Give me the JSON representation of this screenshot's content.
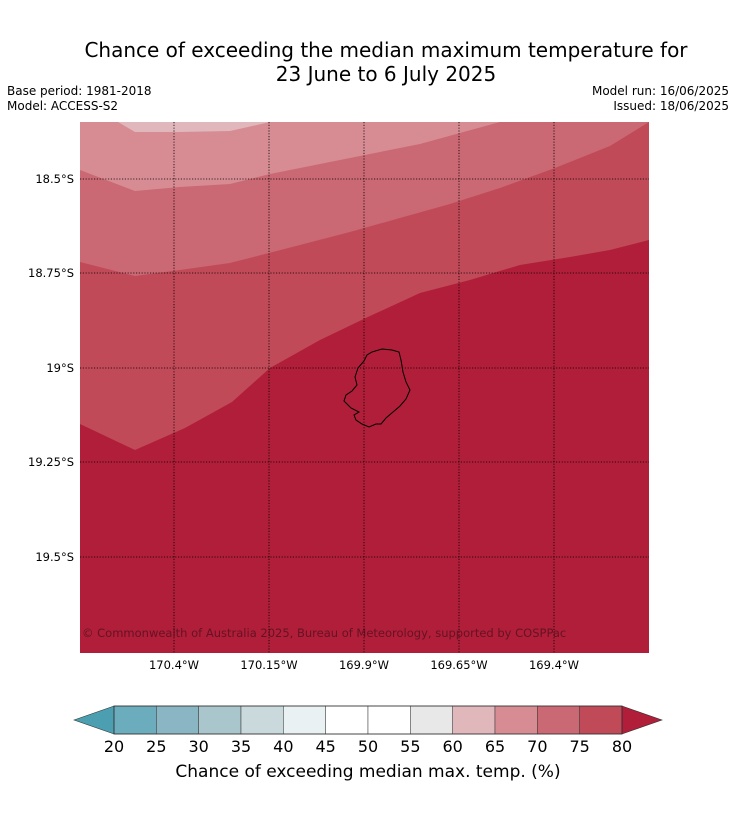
{
  "map": {
    "title_line1": "Chance of exceeding the median maximum temperature for",
    "title_line2": "23 June to 6 July 2025",
    "base_period": "Base period: 1981-2018",
    "model": "Model: ACCESS-S2",
    "model_run": "Model run: 16/06/2025",
    "issued": "Issued: 18/06/2025",
    "copyright": "© Commonwealth of Australia 2025, Bureau of Meteorology, supported by COSPPac",
    "region": "Niue",
    "lat_ticks": [
      "18.5°S",
      "18.75°S",
      "19°S",
      "19.25°S",
      "19.5°S"
    ],
    "lon_ticks": [
      "170.4°W",
      "170.15°W",
      "169.9°W",
      "169.65°W",
      "169.4°W"
    ],
    "band_colors": {
      "60-65": "#e0b7bb",
      "65-70": "#d78c94",
      "70-75": "#ca6873",
      "75-80": "#c04a57",
      "80+": "#b01e39"
    }
  },
  "colorbar": {
    "title": "Chance of exceeding median max. temp. (%)",
    "labels": [
      "20",
      "25",
      "30",
      "35",
      "40",
      "45",
      "50",
      "55",
      "60",
      "65",
      "70",
      "75",
      "80"
    ],
    "colors": [
      "#6bacbd",
      "#8ab5c2",
      "#a8c6cb",
      "#c9d9dc",
      "#eaf1f3",
      "#ffffff",
      "#ffffff",
      "#e9e8e9",
      "#e0b7bb",
      "#d78c94",
      "#ca6873",
      "#c04a57"
    ],
    "under_color": "#4b9fb0",
    "over_color": "#b01e39"
  }
}
